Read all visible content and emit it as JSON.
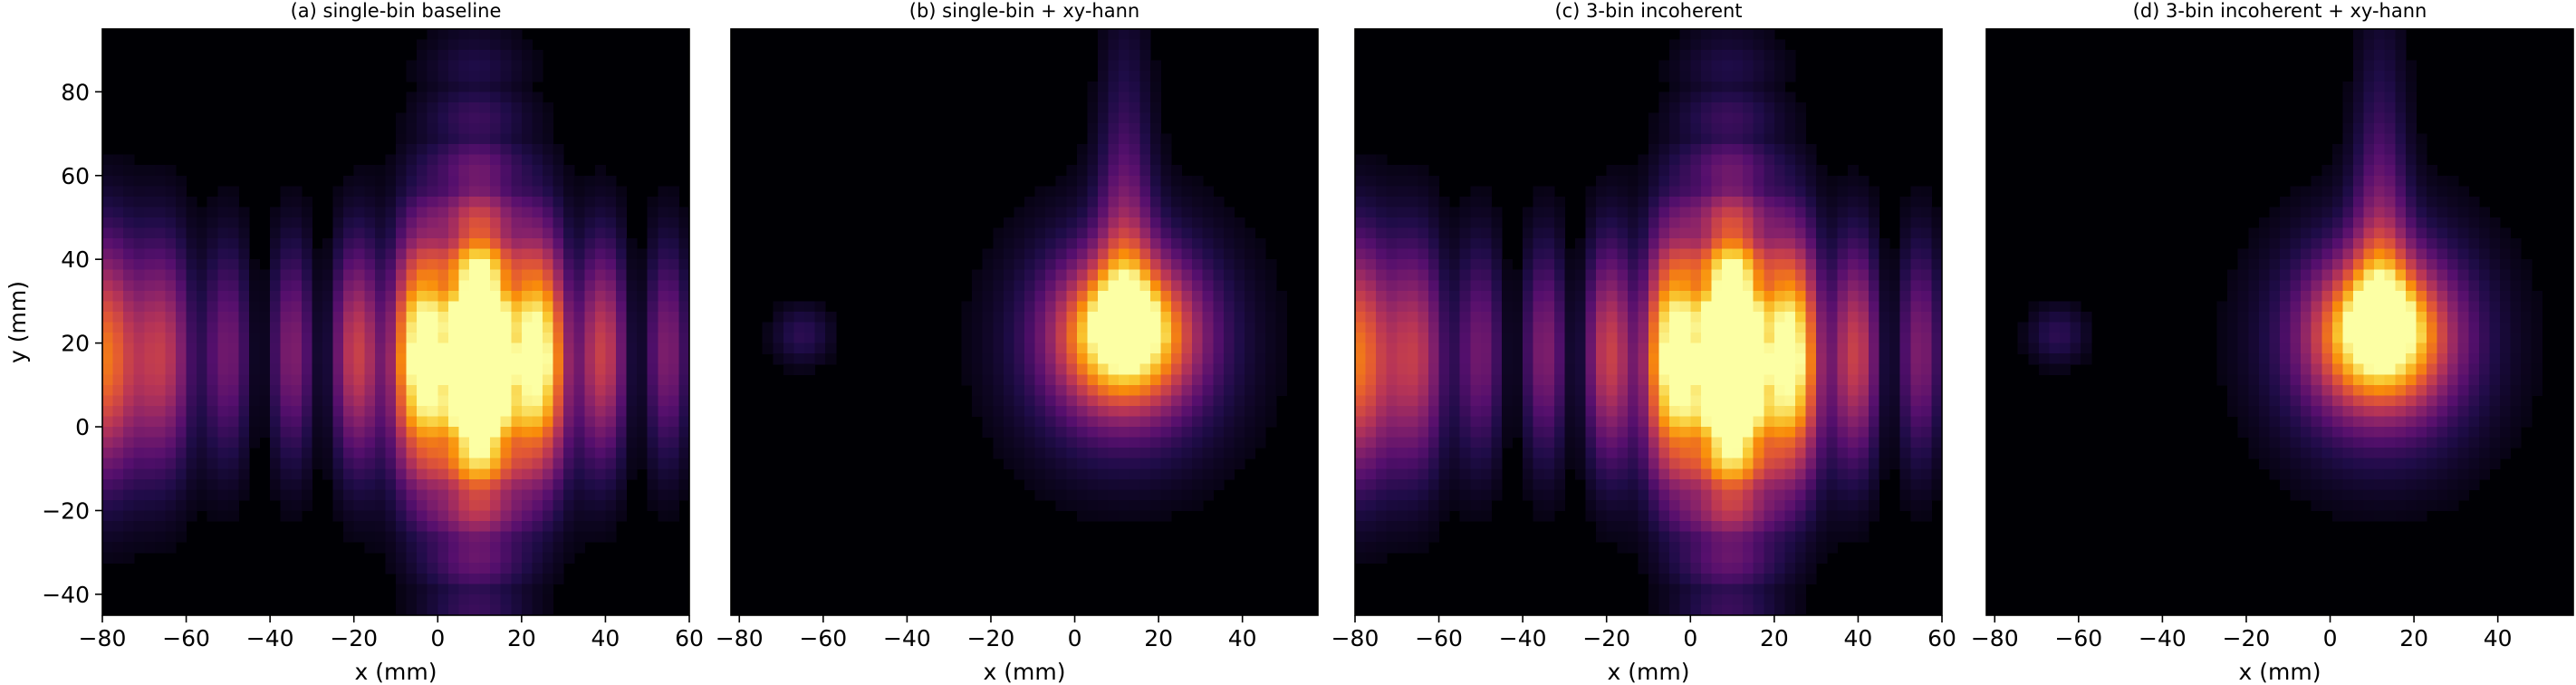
{
  "chart_data": [
    {
      "type": "heatmap",
      "title": "(a) single-bin baseline",
      "xlabel": "x (mm)",
      "ylabel": "y (mm)",
      "xlim": [
        -80,
        60
      ],
      "ylim": [
        -45,
        95
      ],
      "xticks": [
        -80,
        -60,
        -40,
        -20,
        0,
        20,
        40,
        60
      ],
      "yticks": [
        -40,
        -20,
        0,
        20,
        40,
        60,
        80
      ],
      "colormap": "inferno",
      "peak_mm": [
        10,
        15
      ],
      "windowed": false
    },
    {
      "type": "heatmap",
      "title": "(b) single-bin + xy-hann",
      "xlabel": "x (mm)",
      "ylabel": "",
      "xlim": [
        -82,
        58
      ],
      "ylim": [
        -45,
        95
      ],
      "xticks": [
        -80,
        -60,
        -40,
        -20,
        0,
        20,
        40
      ],
      "yticks": [],
      "colormap": "inferno",
      "peak_mm": [
        12,
        22
      ],
      "windowed": true
    },
    {
      "type": "heatmap",
      "title": "(c) 3-bin incoherent",
      "xlabel": "x (mm)",
      "ylabel": "",
      "xlim": [
        -80,
        60
      ],
      "ylim": [
        -45,
        95
      ],
      "xticks": [
        -80,
        -60,
        -40,
        -20,
        0,
        20,
        40,
        60
      ],
      "yticks": [],
      "colormap": "inferno",
      "peak_mm": [
        10,
        15
      ],
      "windowed": false
    },
    {
      "type": "heatmap",
      "title": "(d) 3-bin incoherent + xy-hann",
      "xlabel": "x (mm)",
      "ylabel": "",
      "xlim": [
        -82,
        58
      ],
      "ylim": [
        -45,
        95
      ],
      "xticks": [
        -80,
        -60,
        -40,
        -20,
        0,
        20,
        40
      ],
      "yticks": [],
      "colormap": "inferno",
      "peak_mm": [
        12,
        22
      ],
      "windowed": true
    }
  ]
}
